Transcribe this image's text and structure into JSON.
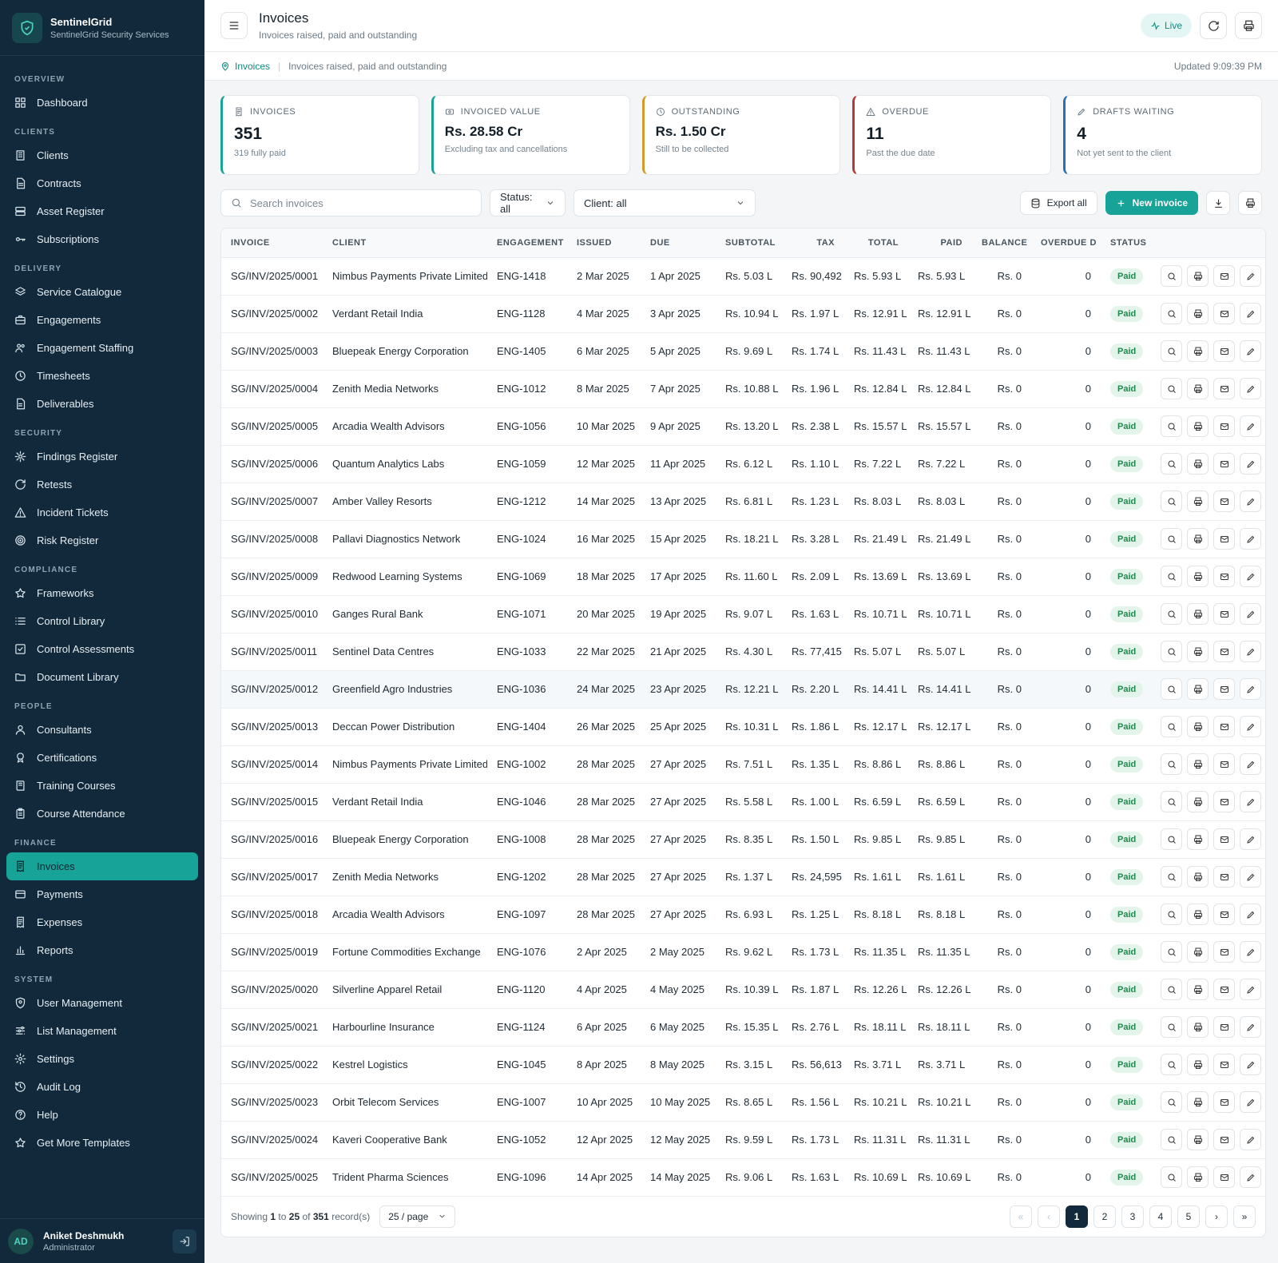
{
  "brand": {
    "name": "SentinelGrid",
    "subtitle": "SentinelGrid Security Services",
    "icon": "shield-icon"
  },
  "sidebar": {
    "sections": [
      {
        "title": "OVERVIEW",
        "items": [
          {
            "label": "Dashboard",
            "icon": "grid-icon"
          }
        ]
      },
      {
        "title": "CLIENTS",
        "items": [
          {
            "label": "Clients",
            "icon": "building-icon"
          },
          {
            "label": "Contracts",
            "icon": "document-icon"
          },
          {
            "label": "Asset Register",
            "icon": "server-icon"
          },
          {
            "label": "Subscriptions",
            "icon": "key-icon"
          }
        ]
      },
      {
        "title": "DELIVERY",
        "items": [
          {
            "label": "Service Catalogue",
            "icon": "layers-icon"
          },
          {
            "label": "Engagements",
            "icon": "briefcase-icon"
          },
          {
            "label": "Engagement Staffing",
            "icon": "users-icon"
          },
          {
            "label": "Timesheets",
            "icon": "clock-icon"
          },
          {
            "label": "Deliverables",
            "icon": "file-icon"
          }
        ]
      },
      {
        "title": "SECURITY",
        "items": [
          {
            "label": "Findings Register",
            "icon": "bug-icon"
          },
          {
            "label": "Retests",
            "icon": "refresh-icon"
          },
          {
            "label": "Incident Tickets",
            "icon": "alert-icon"
          },
          {
            "label": "Risk Register",
            "icon": "target-icon"
          }
        ]
      },
      {
        "title": "COMPLIANCE",
        "items": [
          {
            "label": "Frameworks",
            "icon": "star-icon"
          },
          {
            "label": "Control Library",
            "icon": "list-icon"
          },
          {
            "label": "Control Assessments",
            "icon": "check-square-icon"
          },
          {
            "label": "Document Library",
            "icon": "folder-icon"
          }
        ]
      },
      {
        "title": "PEOPLE",
        "items": [
          {
            "label": "Consultants",
            "icon": "user-icon"
          },
          {
            "label": "Certifications",
            "icon": "award-icon"
          },
          {
            "label": "Training Courses",
            "icon": "book-icon"
          },
          {
            "label": "Course Attendance",
            "icon": "clipboard-icon"
          }
        ]
      },
      {
        "title": "FINANCE",
        "items": [
          {
            "label": "Invoices",
            "icon": "receipt-icon",
            "active": true
          },
          {
            "label": "Payments",
            "icon": "credit-card-icon"
          },
          {
            "label": "Expenses",
            "icon": "receipt-icon"
          },
          {
            "label": "Reports",
            "icon": "bar-chart-icon"
          }
        ]
      },
      {
        "title": "SYSTEM",
        "items": [
          {
            "label": "User Management",
            "icon": "user-shield-icon"
          },
          {
            "label": "List Management",
            "icon": "sliders-icon"
          },
          {
            "label": "Settings",
            "icon": "gear-icon"
          },
          {
            "label": "Audit Log",
            "icon": "history-icon"
          },
          {
            "label": "Help",
            "icon": "help-icon"
          },
          {
            "label": "Get More Templates",
            "icon": "star-icon"
          }
        ]
      }
    ]
  },
  "user": {
    "initials": "AD",
    "name": "Aniket Deshmukh",
    "role": "Administrator"
  },
  "header": {
    "title": "Invoices",
    "subtitle": "Invoices raised, paid and outstanding",
    "live_label": "Live"
  },
  "breadcrumb": {
    "current": "Invoices",
    "description": "Invoices raised, paid and outstanding",
    "updated": "Updated 9:09:39 PM"
  },
  "kpis": [
    {
      "label": "INVOICES",
      "value": "351",
      "note": "319 fully paid",
      "icon": "receipt-icon"
    },
    {
      "label": "INVOICED VALUE",
      "value": "Rs. 28.58 Cr",
      "note": "Excluding tax and cancellations",
      "icon": "money-icon"
    },
    {
      "label": "OUTSTANDING",
      "value": "Rs. 1.50 Cr",
      "note": "Still to be collected",
      "icon": "clock-icon"
    },
    {
      "label": "OVERDUE",
      "value": "11",
      "note": "Past the due date",
      "icon": "alert-icon"
    },
    {
      "label": "DRAFTS WAITING",
      "value": "4",
      "note": "Not yet sent to the client",
      "icon": "pencil-icon"
    }
  ],
  "toolbar": {
    "search_placeholder": "Search invoices",
    "status_filter": "Status: all",
    "client_filter": "Client: all",
    "export_label": "Export all",
    "new_label": "New invoice"
  },
  "table": {
    "columns": [
      "INVOICE",
      "CLIENT",
      "ENGAGEMENT",
      "ISSUED",
      "DUE",
      "SUBTOTAL",
      "TAX",
      "TOTAL",
      "PAID",
      "BALANCE",
      "OVERDUE D",
      "STATUS"
    ],
    "rows": [
      [
        "SG/INV/2025/0001",
        "Nimbus Payments Private Limited",
        "ENG-1418",
        "2 Mar 2025",
        "1 Apr 2025",
        "Rs. 5.03 L",
        "Rs. 90,492",
        "Rs. 5.93 L",
        "Rs. 5.93 L",
        "Rs. 0",
        "0",
        "Paid"
      ],
      [
        "SG/INV/2025/0002",
        "Verdant Retail India",
        "ENG-1128",
        "4 Mar 2025",
        "3 Apr 2025",
        "Rs. 10.94 L",
        "Rs. 1.97 L",
        "Rs. 12.91 L",
        "Rs. 12.91 L",
        "Rs. 0",
        "0",
        "Paid"
      ],
      [
        "SG/INV/2025/0003",
        "Bluepeak Energy Corporation",
        "ENG-1405",
        "6 Mar 2025",
        "5 Apr 2025",
        "Rs. 9.69 L",
        "Rs. 1.74 L",
        "Rs. 11.43 L",
        "Rs. 11.43 L",
        "Rs. 0",
        "0",
        "Paid"
      ],
      [
        "SG/INV/2025/0004",
        "Zenith Media Networks",
        "ENG-1012",
        "8 Mar 2025",
        "7 Apr 2025",
        "Rs. 10.88 L",
        "Rs. 1.96 L",
        "Rs. 12.84 L",
        "Rs. 12.84 L",
        "Rs. 0",
        "0",
        "Paid"
      ],
      [
        "SG/INV/2025/0005",
        "Arcadia Wealth Advisors",
        "ENG-1056",
        "10 Mar 2025",
        "9 Apr 2025",
        "Rs. 13.20 L",
        "Rs. 2.38 L",
        "Rs. 15.57 L",
        "Rs. 15.57 L",
        "Rs. 0",
        "0",
        "Paid"
      ],
      [
        "SG/INV/2025/0006",
        "Quantum Analytics Labs",
        "ENG-1059",
        "12 Mar 2025",
        "11 Apr 2025",
        "Rs. 6.12 L",
        "Rs. 1.10 L",
        "Rs. 7.22 L",
        "Rs. 7.22 L",
        "Rs. 0",
        "0",
        "Paid"
      ],
      [
        "SG/INV/2025/0007",
        "Amber Valley Resorts",
        "ENG-1212",
        "14 Mar 2025",
        "13 Apr 2025",
        "Rs. 6.81 L",
        "Rs. 1.23 L",
        "Rs. 8.03 L",
        "Rs. 8.03 L",
        "Rs. 0",
        "0",
        "Paid"
      ],
      [
        "SG/INV/2025/0008",
        "Pallavi Diagnostics Network",
        "ENG-1024",
        "16 Mar 2025",
        "15 Apr 2025",
        "Rs. 18.21 L",
        "Rs. 3.28 L",
        "Rs. 21.49 L",
        "Rs. 21.49 L",
        "Rs. 0",
        "0",
        "Paid"
      ],
      [
        "SG/INV/2025/0009",
        "Redwood Learning Systems",
        "ENG-1069",
        "18 Mar 2025",
        "17 Apr 2025",
        "Rs. 11.60 L",
        "Rs. 2.09 L",
        "Rs. 13.69 L",
        "Rs. 13.69 L",
        "Rs. 0",
        "0",
        "Paid"
      ],
      [
        "SG/INV/2025/0010",
        "Ganges Rural Bank",
        "ENG-1071",
        "20 Mar 2025",
        "19 Apr 2025",
        "Rs. 9.07 L",
        "Rs. 1.63 L",
        "Rs. 10.71 L",
        "Rs. 10.71 L",
        "Rs. 0",
        "0",
        "Paid"
      ],
      [
        "SG/INV/2025/0011",
        "Sentinel Data Centres",
        "ENG-1033",
        "22 Mar 2025",
        "21 Apr 2025",
        "Rs. 4.30 L",
        "Rs. 77,415",
        "Rs. 5.07 L",
        "Rs. 5.07 L",
        "Rs. 0",
        "0",
        "Paid"
      ],
      [
        "SG/INV/2025/0012",
        "Greenfield Agro Industries",
        "ENG-1036",
        "24 Mar 2025",
        "23 Apr 2025",
        "Rs. 12.21 L",
        "Rs. 2.20 L",
        "Rs. 14.41 L",
        "Rs. 14.41 L",
        "Rs. 0",
        "0",
        "Paid"
      ],
      [
        "SG/INV/2025/0013",
        "Deccan Power Distribution",
        "ENG-1404",
        "26 Mar 2025",
        "25 Apr 2025",
        "Rs. 10.31 L",
        "Rs. 1.86 L",
        "Rs. 12.17 L",
        "Rs. 12.17 L",
        "Rs. 0",
        "0",
        "Paid"
      ],
      [
        "SG/INV/2025/0014",
        "Nimbus Payments Private Limited",
        "ENG-1002",
        "28 Mar 2025",
        "27 Apr 2025",
        "Rs. 7.51 L",
        "Rs. 1.35 L",
        "Rs. 8.86 L",
        "Rs. 8.86 L",
        "Rs. 0",
        "0",
        "Paid"
      ],
      [
        "SG/INV/2025/0015",
        "Verdant Retail India",
        "ENG-1046",
        "28 Mar 2025",
        "27 Apr 2025",
        "Rs. 5.58 L",
        "Rs. 1.00 L",
        "Rs. 6.59 L",
        "Rs. 6.59 L",
        "Rs. 0",
        "0",
        "Paid"
      ],
      [
        "SG/INV/2025/0016",
        "Bluepeak Energy Corporation",
        "ENG-1008",
        "28 Mar 2025",
        "27 Apr 2025",
        "Rs. 8.35 L",
        "Rs. 1.50 L",
        "Rs. 9.85 L",
        "Rs. 9.85 L",
        "Rs. 0",
        "0",
        "Paid"
      ],
      [
        "SG/INV/2025/0017",
        "Zenith Media Networks",
        "ENG-1202",
        "28 Mar 2025",
        "27 Apr 2025",
        "Rs. 1.37 L",
        "Rs. 24,595",
        "Rs. 1.61 L",
        "Rs. 1.61 L",
        "Rs. 0",
        "0",
        "Paid"
      ],
      [
        "SG/INV/2025/0018",
        "Arcadia Wealth Advisors",
        "ENG-1097",
        "28 Mar 2025",
        "27 Apr 2025",
        "Rs. 6.93 L",
        "Rs. 1.25 L",
        "Rs. 8.18 L",
        "Rs. 8.18 L",
        "Rs. 0",
        "0",
        "Paid"
      ],
      [
        "SG/INV/2025/0019",
        "Fortune Commodities Exchange",
        "ENG-1076",
        "2 Apr 2025",
        "2 May 2025",
        "Rs. 9.62 L",
        "Rs. 1.73 L",
        "Rs. 11.35 L",
        "Rs. 11.35 L",
        "Rs. 0",
        "0",
        "Paid"
      ],
      [
        "SG/INV/2025/0020",
        "Silverline Apparel Retail",
        "ENG-1120",
        "4 Apr 2025",
        "4 May 2025",
        "Rs. 10.39 L",
        "Rs. 1.87 L",
        "Rs. 12.26 L",
        "Rs. 12.26 L",
        "Rs. 0",
        "0",
        "Paid"
      ],
      [
        "SG/INV/2025/0021",
        "Harbourline Insurance",
        "ENG-1124",
        "6 Apr 2025",
        "6 May 2025",
        "Rs. 15.35 L",
        "Rs. 2.76 L",
        "Rs. 18.11 L",
        "Rs. 18.11 L",
        "Rs. 0",
        "0",
        "Paid"
      ],
      [
        "SG/INV/2025/0022",
        "Kestrel Logistics",
        "ENG-1045",
        "8 Apr 2025",
        "8 May 2025",
        "Rs. 3.15 L",
        "Rs. 56,613",
        "Rs. 3.71 L",
        "Rs. 3.71 L",
        "Rs. 0",
        "0",
        "Paid"
      ],
      [
        "SG/INV/2025/0023",
        "Orbit Telecom Services",
        "ENG-1007",
        "10 Apr 2025",
        "10 May 2025",
        "Rs. 8.65 L",
        "Rs. 1.56 L",
        "Rs. 10.21 L",
        "Rs. 10.21 L",
        "Rs. 0",
        "0",
        "Paid"
      ],
      [
        "SG/INV/2025/0024",
        "Kaveri Cooperative Bank",
        "ENG-1052",
        "12 Apr 2025",
        "12 May 2025",
        "Rs. 9.59 L",
        "Rs. 1.73 L",
        "Rs. 11.31 L",
        "Rs. 11.31 L",
        "Rs. 0",
        "0",
        "Paid"
      ],
      [
        "SG/INV/2025/0025",
        "Trident Pharma Sciences",
        "ENG-1096",
        "14 Apr 2025",
        "14 May 2025",
        "Rs. 9.06 L",
        "Rs. 1.63 L",
        "Rs. 10.69 L",
        "Rs. 10.69 L",
        "Rs. 0",
        "0",
        "Paid"
      ]
    ]
  },
  "pagination": {
    "showing_prefix": "Showing",
    "from": "1",
    "to_word": "to",
    "to": "25",
    "of_word": "of",
    "total": "351",
    "suffix": "record(s)",
    "per_page": "25 / page",
    "first": "«",
    "prev": "‹",
    "pages": [
      "1",
      "2",
      "3",
      "4",
      "5"
    ],
    "current": "1",
    "next": "›",
    "last": "»"
  },
  "colors": {
    "sidebar": "#11293a",
    "accent": "#17a398",
    "paid_badge": "#1f8a4c"
  }
}
